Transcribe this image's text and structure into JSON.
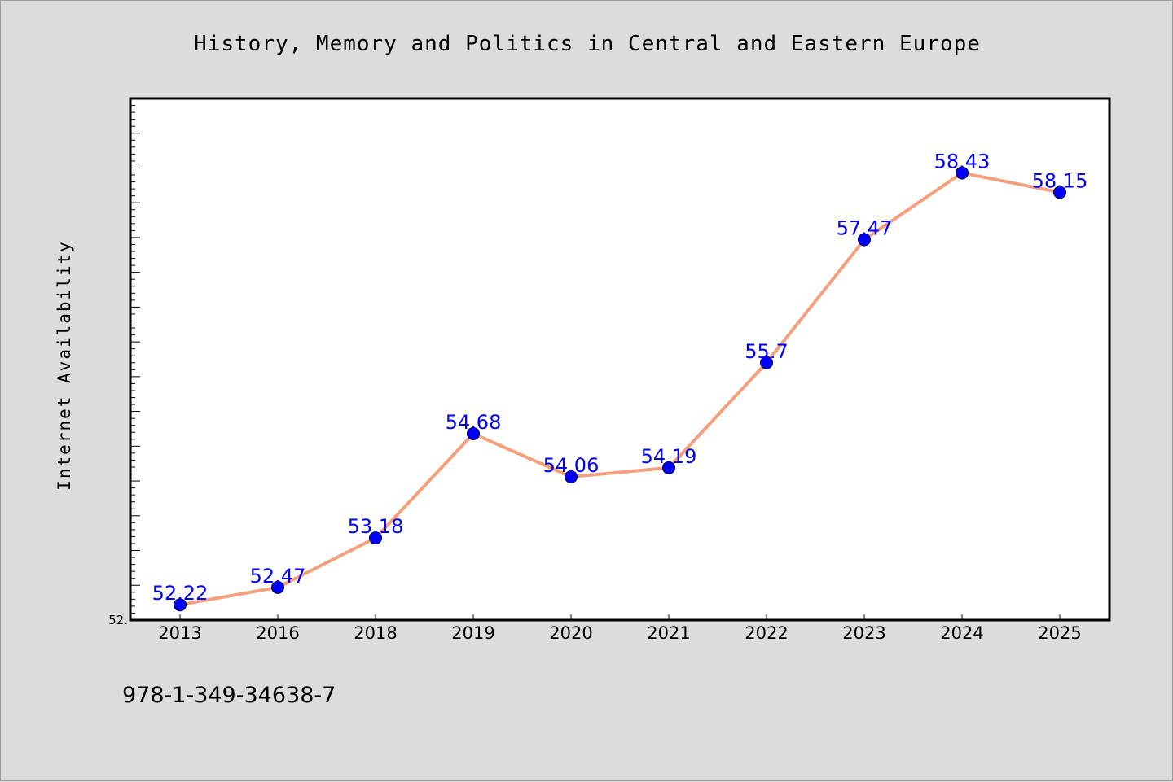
{
  "chart_data": {
    "type": "line",
    "title": "History, Memory and Politics in Central and Eastern Europe",
    "xlabel": "",
    "ylabel": "Internet Availability",
    "categories": [
      "2013",
      "2016",
      "2018",
      "2019",
      "2020",
      "2021",
      "2022",
      "2023",
      "2024",
      "2025"
    ],
    "series": [
      {
        "values": [
          52.22,
          52.47,
          53.18,
          54.68,
          54.06,
          54.19,
          55.7,
          57.47,
          58.43,
          58.15
        ],
        "data_labels": [
          "52.22",
          "52.47",
          "53.18",
          "54.68",
          "54.06",
          "54.19",
          "55.7",
          "57.47",
          "58.43",
          "58.15"
        ]
      }
    ],
    "ylim": [
      52.0,
      59.5
    ],
    "y_tick_labels": [
      "52."
    ],
    "grid": false,
    "legend": "none",
    "line_color": "#f4a07f",
    "marker_color": "#0000ff",
    "label_color": "#0000ff"
  },
  "footnote": "978-1-349-34638-7"
}
